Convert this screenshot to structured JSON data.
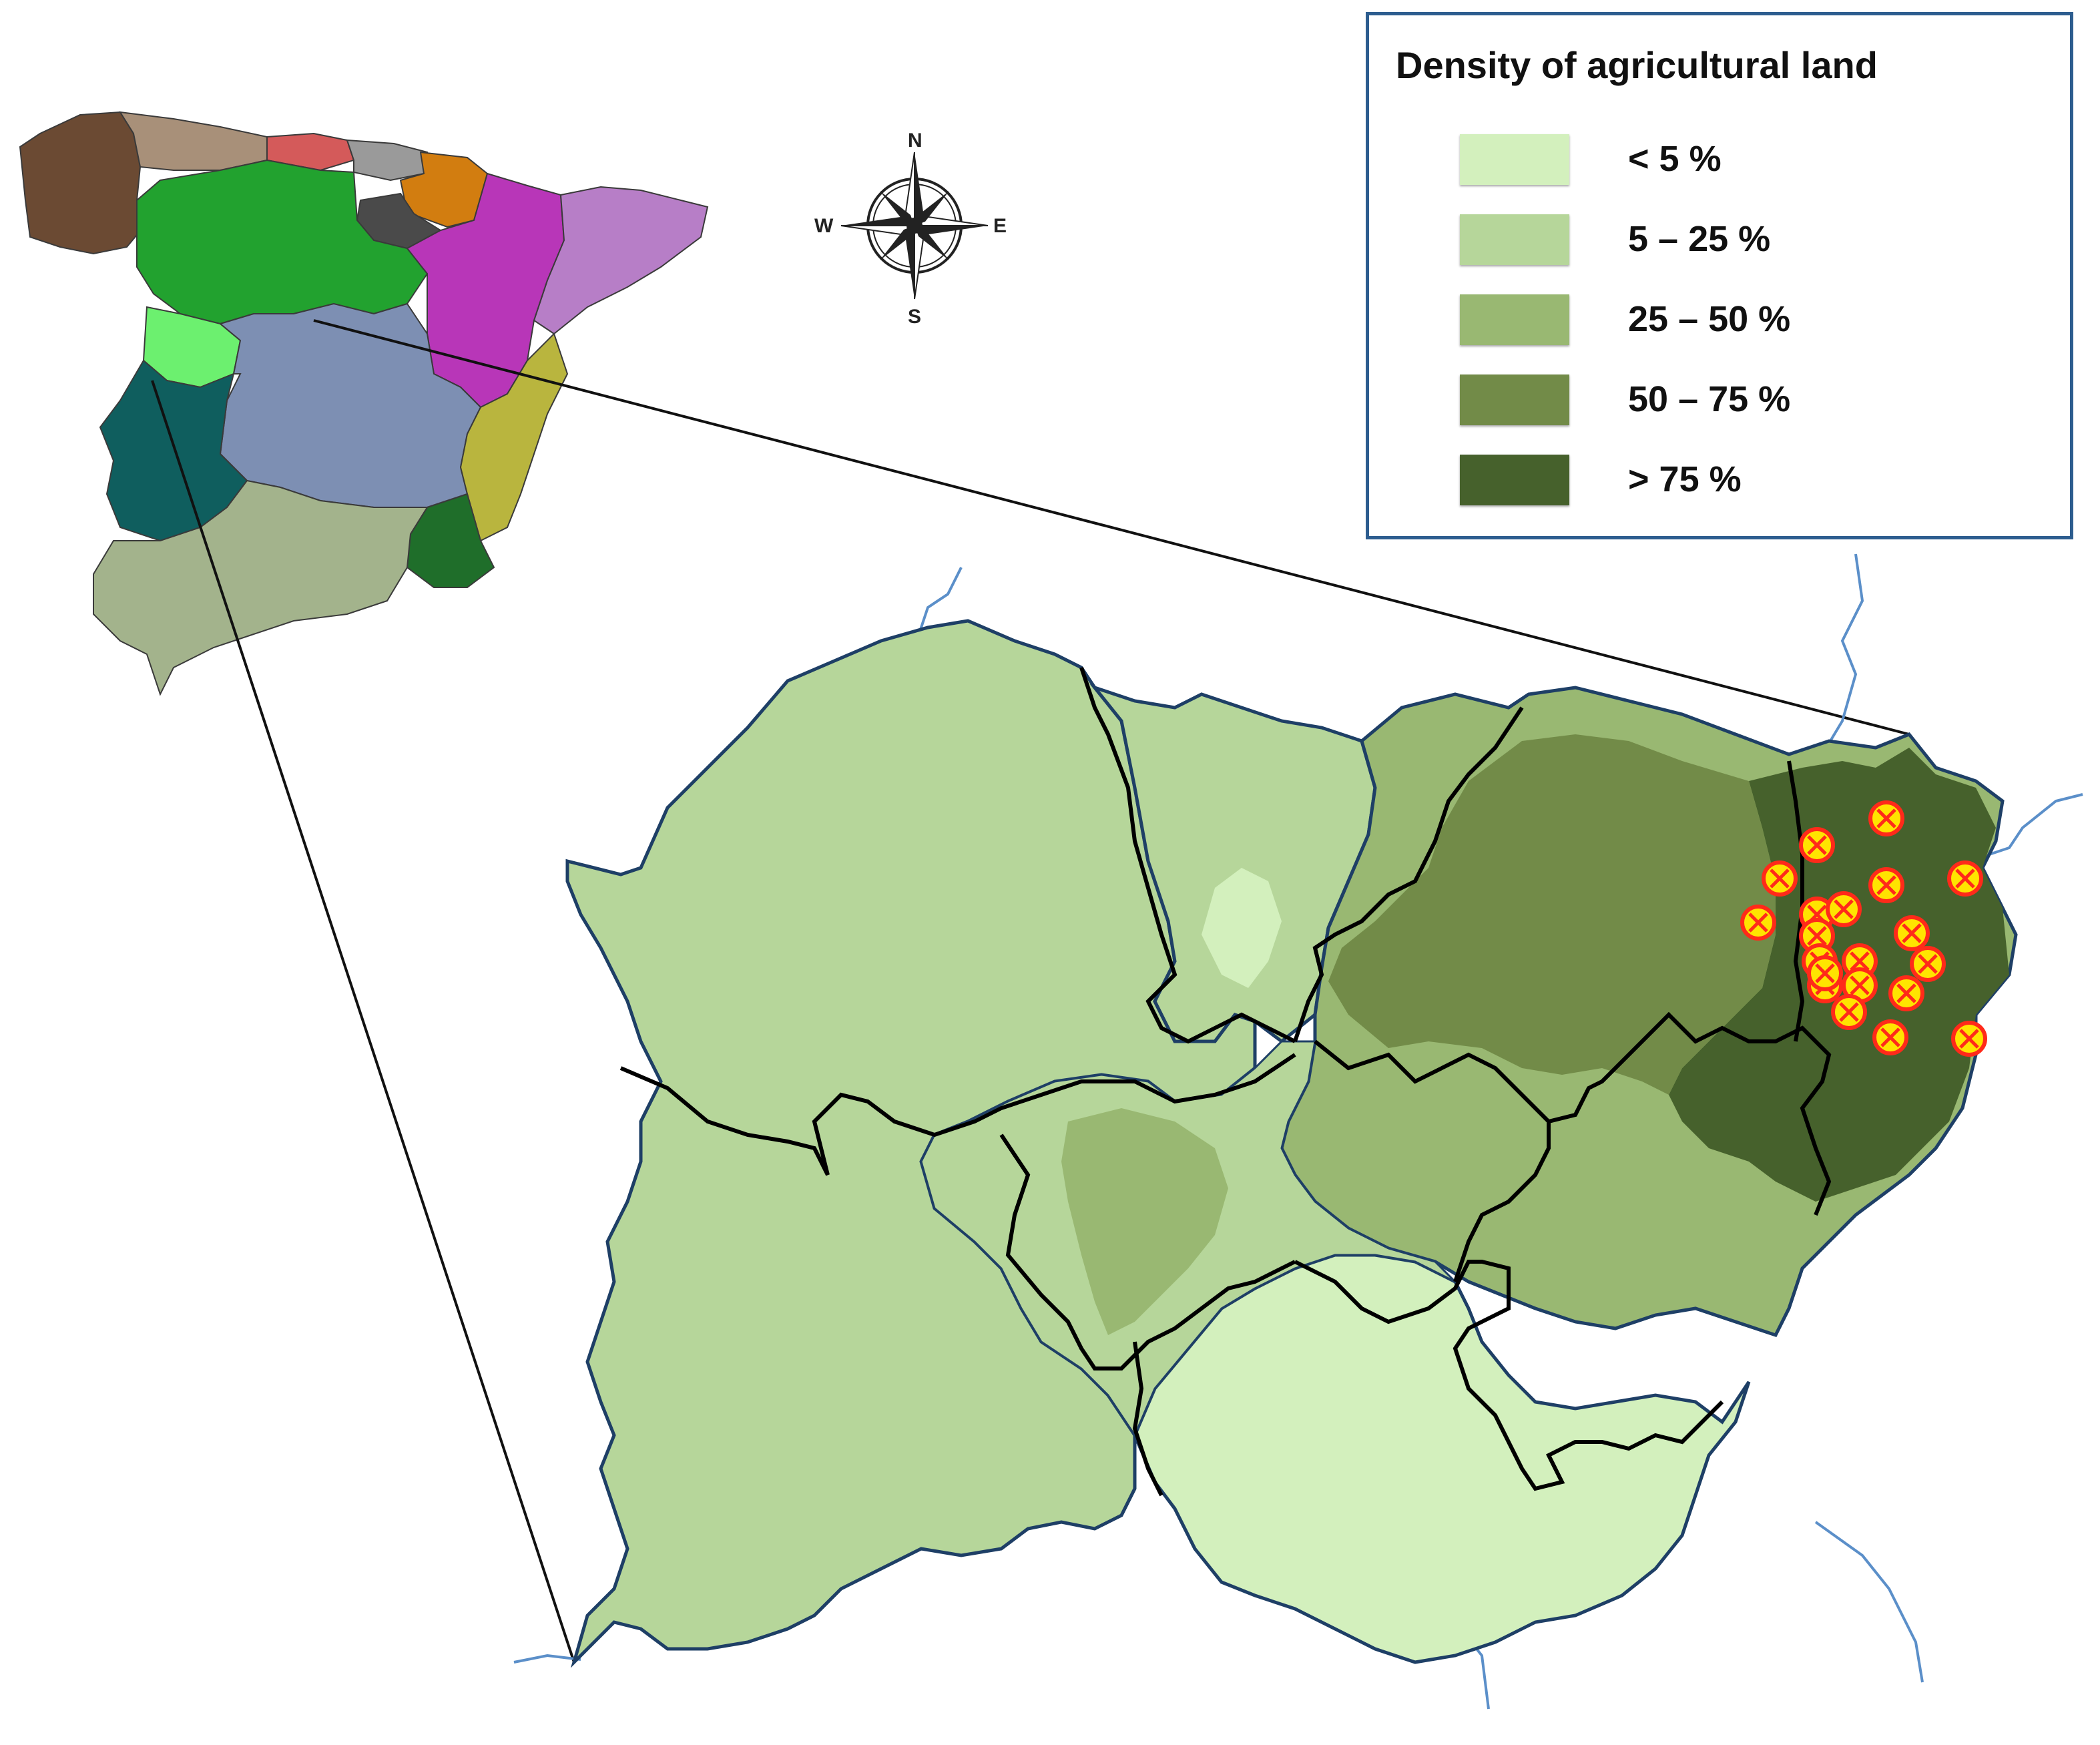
{
  "legend": {
    "title": "Density of agricultural  land",
    "items": [
      {
        "label": "< 5 %",
        "color": "#d3f0bd"
      },
      {
        "label": "5 – 25 %",
        "color": "#b6d69a"
      },
      {
        "label": "25 – 50 %",
        "color": "#99b872"
      },
      {
        "label": "50 – 75 %",
        "color": "#728b48"
      },
      {
        "label": "> 75 %",
        "color": "#46612c"
      }
    ]
  },
  "compass": {
    "north": "N",
    "south": "S",
    "east": "E",
    "west": "W"
  },
  "markers": {
    "count": 20,
    "fill": "#ffe400",
    "ring": "#ff2a1a"
  },
  "colors": {
    "region_border": "#000000",
    "coast": "#1e3f66",
    "river": "#5b8fc9",
    "inset_regions": [
      "#6b4a33",
      "#a89079",
      "#d45a5a",
      "#9a9a9a",
      "#d27d10",
      "#4a4a4a",
      "#22a22f",
      "#b836b8",
      "#b77ec7",
      "#6cf06f",
      "#3a2a8a",
      "#7d8fb3",
      "#b9b53e",
      "#0f5e5e",
      "#1f6e2a",
      "#a3b38c"
    ]
  }
}
